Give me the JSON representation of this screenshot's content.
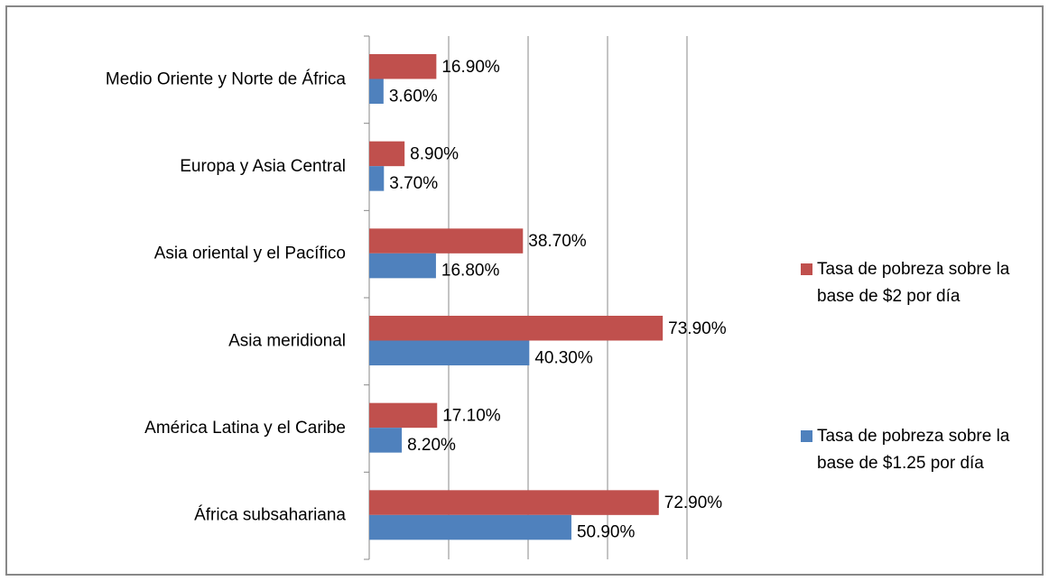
{
  "chart_data": {
    "type": "hbar",
    "categories": [
      "Medio Oriente y Norte de África",
      "Europa y Asia Central",
      "Asia oriental y el Pacífico",
      "Asia meridional",
      "América Latina y el Caribe",
      "África subsahariana"
    ],
    "series": [
      {
        "name": "Tasa de pobreza sobre la base de $2 por día",
        "color": "#c0504d",
        "values": [
          16.9,
          8.9,
          38.7,
          73.9,
          17.1,
          72.9
        ],
        "value_labels": [
          "16.90%",
          "8.90%",
          "38.70%",
          "73.90%",
          "17.10%",
          "72.90%"
        ]
      },
      {
        "name": "Tasa de pobreza sobre la base de $1.25 por día",
        "color": "#4f81bd",
        "values": [
          3.6,
          3.7,
          16.8,
          40.3,
          8.2,
          50.9
        ],
        "value_labels": [
          "3.60%",
          "3.70%",
          "16.80%",
          "40.30%",
          "8.20%",
          "50.90%"
        ]
      }
    ],
    "xlim": [
      0,
      80
    ],
    "xticks": [
      0,
      20,
      40,
      60,
      80
    ],
    "grid": true,
    "legend": "right"
  }
}
